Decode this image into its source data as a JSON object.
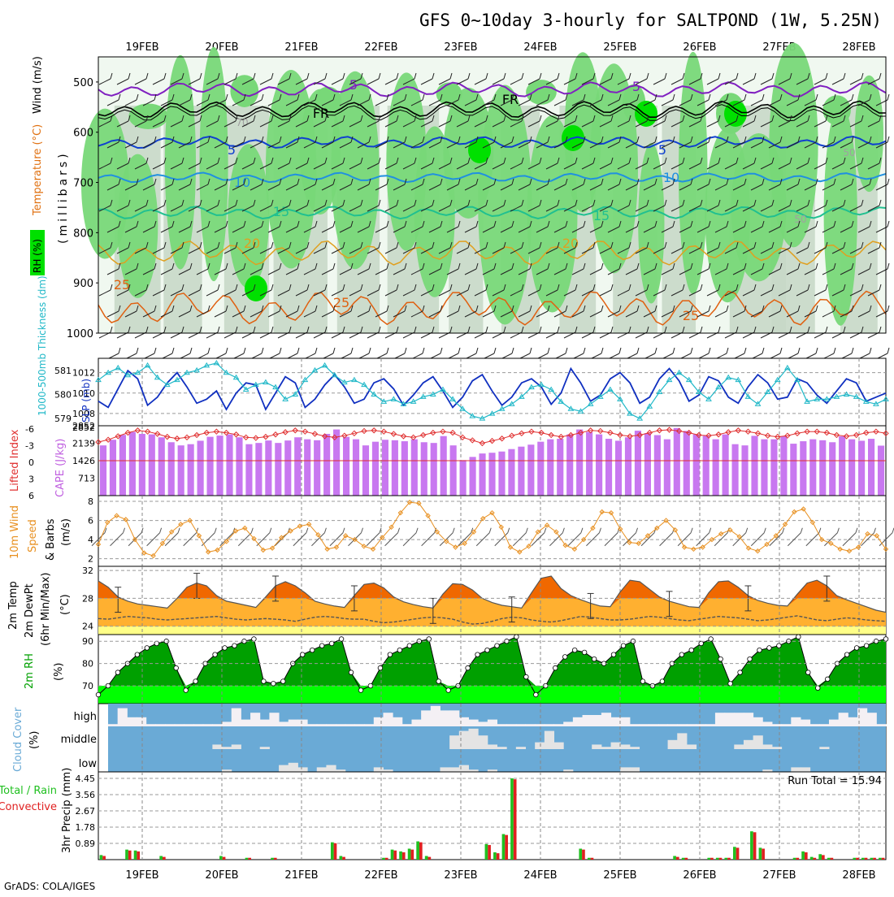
{
  "title": "GFS 0~10day 3-hourly for SALTPOND (1W, 5.25N)",
  "credit": "GrADS: COLA/IGES",
  "colors": {
    "rh_light": "#c8d8c8",
    "rh_mid": "#78d878",
    "rh_dark": "#00e000",
    "cape_bar": "#c878f0",
    "li_line": "#e03030",
    "slp_line": "#1030c0",
    "thick_line": "#20b8c8",
    "wind_line": "#e89020",
    "temp_fill": "#ffb030",
    "temp_top": "#f06800",
    "dew_fill": "#ffff88",
    "rh2m_dark": "#00a000",
    "rh2m_light": "#00ff00",
    "cloud_bg": "#6aaad6",
    "cloud_fill": "#f4f0f4",
    "precip_total": "#20c020",
    "precip_conv": "#e02020"
  },
  "dates": [
    "19FEB",
    "20FEB",
    "21FEB",
    "22FEB",
    "23FEB",
    "24FEB",
    "25FEB",
    "26FEB",
    "27FEB",
    "28FEB"
  ],
  "chart_data": [
    {
      "type": "area",
      "panel": "upper-air",
      "ylabels": [
        "RH (%)",
        "Temperature (°C)",
        "Wind (m/s)",
        "(millibars)"
      ],
      "yticks": [
        500,
        600,
        700,
        800,
        900,
        1000
      ],
      "ylim": [
        450,
        1000
      ],
      "isotherm_labels": [
        {
          "level": "-5",
          "series": "temp_m5",
          "text": [
            "5",
            "5"
          ]
        },
        {
          "level": "0",
          "series": "temp_0",
          "text": [
            "FR",
            "FR"
          ]
        },
        {
          "level": "5",
          "series": "temp_5",
          "text": [
            "5",
            "5"
          ]
        },
        {
          "level": "10",
          "series": "temp_10",
          "text": [
            "10",
            "10"
          ]
        },
        {
          "level": "15",
          "series": "temp_15",
          "text": [
            "15",
            "15"
          ]
        },
        {
          "level": "20",
          "series": "temp_20",
          "text": [
            "20",
            "20"
          ]
        },
        {
          "level": "25",
          "series": "temp_25",
          "text": [
            "25",
            "25",
            "25"
          ]
        }
      ],
      "rh_labels": [
        "70",
        "50",
        "50"
      ]
    },
    {
      "type": "line",
      "panel": "slp-thickness",
      "ylabel_left": "1000-500mb Thickness (dm)",
      "ylabel_right": "SLP (mb)",
      "left_ticks": [
        579,
        580,
        581
      ],
      "right_ticks": [
        1008,
        1010,
        1012
      ],
      "slp": [
        1009.2,
        1008.6,
        1010.4,
        1012.2,
        1011.4,
        1008.8,
        1009.6,
        1011.0,
        1012.0,
        1010.6,
        1009.0,
        1009.4,
        1010.2,
        1008.4,
        1010.0,
        1011.0,
        1010.8,
        1008.4,
        1010.0,
        1011.6,
        1011.0,
        1008.6,
        1009.4,
        1010.8,
        1011.8,
        1010.6,
        1009.0,
        1009.4,
        1011.0,
        1011.4,
        1010.4,
        1008.8,
        1009.8,
        1011.0,
        1011.6,
        1010.2,
        1008.6,
        1009.6,
        1011.2,
        1011.8,
        1010.2,
        1008.8,
        1009.6,
        1011.0,
        1011.4,
        1010.6,
        1008.9,
        1010.0,
        1012.4,
        1011.0,
        1009.2,
        1009.8,
        1011.4,
        1012.0,
        1011.0,
        1009.0,
        1009.6,
        1011.4,
        1012.4,
        1011.2,
        1009.2,
        1009.8,
        1011.6,
        1011.2,
        1009.6,
        1009.0,
        1010.6,
        1011.8,
        1011.0,
        1009.4,
        1009.6,
        1011.4,
        1011.0,
        1009.8,
        1009.0,
        1010.2,
        1011.4,
        1011.0,
        1009.2,
        1009.6,
        1010.0
      ],
      "thickness": [
        580.6,
        580.9,
        581.1,
        580.8,
        580.9,
        581.2,
        580.7,
        580.4,
        580.6,
        580.9,
        581.0,
        581.2,
        581.3,
        580.9,
        580.7,
        580.2,
        580.4,
        580.5,
        580.3,
        579.8,
        580.0,
        580.6,
        581.0,
        581.2,
        580.8,
        580.5,
        580.6,
        580.4,
        580.0,
        579.7,
        579.8,
        579.6,
        579.7,
        579.9,
        580.0,
        580.2,
        579.8,
        579.4,
        579.1,
        579.0,
        579.2,
        579.4,
        579.6,
        579.9,
        580.3,
        580.4,
        580.2,
        579.7,
        579.4,
        579.3,
        579.6,
        579.9,
        580.2,
        579.8,
        579.2,
        579.0,
        579.5,
        580.1,
        580.6,
        580.9,
        580.6,
        580.1,
        579.8,
        580.3,
        580.7,
        580.6,
        579.9,
        579.6,
        580.1,
        580.6,
        581.1,
        580.6,
        579.7,
        579.8,
        579.8,
        579.9,
        580.0,
        579.9,
        579.7,
        579.6,
        579.8
      ]
    },
    {
      "type": "bar",
      "panel": "cape-li",
      "ylabel_left": "Lifted Index",
      "ylabel_right": "CAPE (J/kg)",
      "left_ticks": [
        "-6",
        "-3",
        "0",
        "3",
        "6"
      ],
      "right_ticks": [
        "713",
        "1426",
        "2139",
        "2852"
      ],
      "cape": [
        2050,
        2280,
        2480,
        2600,
        2520,
        2500,
        2380,
        2180,
        2050,
        2100,
        2240,
        2400,
        2450,
        2500,
        2380,
        2100,
        2150,
        2250,
        2150,
        2250,
        2380,
        2300,
        2260,
        2520,
        2700,
        2400,
        2300,
        2050,
        2200,
        2280,
        2260,
        2220,
        2300,
        2180,
        2150,
        2430,
        2050,
        1450,
        1580,
        1720,
        1750,
        1800,
        1900,
        2000,
        2080,
        2200,
        2300,
        2320,
        2500,
        2700,
        2600,
        2500,
        2320,
        2240,
        2380,
        2650,
        2550,
        2470,
        2300,
        2760,
        2640,
        2500,
        2440,
        2300,
        2500,
        2100,
        2050,
        2440,
        2300,
        2300,
        2420,
        2120,
        2220,
        2300,
        2260,
        2180,
        2420,
        2300,
        2240,
        2320,
        2040
      ],
      "li": [
        -3.2,
        -3.6,
        -4.2,
        -4.8,
        -5.2,
        -5.0,
        -4.6,
        -4.1,
        -3.8,
        -4.0,
        -4.4,
        -4.8,
        -5.0,
        -4.8,
        -4.5,
        -4.0,
        -3.9,
        -4.1,
        -4.5,
        -4.9,
        -5.2,
        -5.0,
        -4.6,
        -4.2,
        -4.0,
        -4.3,
        -4.7,
        -5.1,
        -5.2,
        -5.0,
        -4.6,
        -4.2,
        -4.0,
        -4.4,
        -4.8,
        -5.0,
        -4.8,
        -4.0,
        -3.5,
        -3.0,
        -3.4,
        -3.8,
        -4.3,
        -4.7,
        -5.0,
        -4.8,
        -4.4,
        -4.1,
        -4.4,
        -4.8,
        -5.2,
        -5.1,
        -4.8,
        -4.4,
        -4.2,
        -4.4,
        -4.8,
        -5.2,
        -5.3,
        -5.1,
        -4.8,
        -4.4,
        -4.3,
        -4.5,
        -4.9,
        -5.2,
        -5.0,
        -4.7,
        -4.3,
        -4.1,
        -4.3,
        -4.7,
        -5.0,
        -5.0,
        -4.8,
        -4.4,
        -4.2,
        -4.4,
        -4.8,
        -5.0,
        -4.7
      ]
    },
    {
      "type": "line",
      "panel": "wind10m",
      "ylabel": "10m Wind Speed & Barbs (m/s)",
      "yticks": [
        2,
        4,
        6,
        8
      ],
      "values": [
        3.5,
        5.8,
        6.5,
        6.1,
        4.0,
        2.6,
        2.3,
        3.6,
        4.8,
        5.6,
        6.0,
        4.4,
        2.7,
        2.9,
        3.8,
        4.9,
        5.2,
        4.1,
        2.9,
        3.1,
        4.2,
        4.9,
        5.4,
        5.6,
        4.5,
        3.0,
        3.2,
        4.4,
        4.0,
        3.3,
        3.0,
        4.2,
        5.3,
        6.8,
        7.9,
        7.8,
        6.5,
        4.8,
        3.8,
        3.2,
        3.6,
        4.8,
        6.2,
        6.8,
        5.3,
        3.2,
        2.7,
        3.3,
        4.8,
        5.5,
        4.8,
        3.4,
        3.0,
        4.0,
        5.2,
        6.9,
        6.8,
        5.1,
        3.7,
        3.6,
        4.4,
        5.2,
        6.0,
        5.0,
        3.2,
        3.0,
        3.2,
        4.0,
        4.6,
        5.0,
        4.3,
        3.1,
        2.8,
        3.5,
        4.4,
        5.6,
        6.9,
        7.2,
        5.8,
        4.0,
        3.6,
        3.0,
        2.8,
        3.2,
        4.6,
        4.4,
        3.0
      ]
    },
    {
      "type": "area",
      "panel": "temp2m",
      "ylabel": "2m Temp 2m DewPt (6hr Min/Max) (°C)",
      "yticks": [
        24,
        28,
        32
      ],
      "temp": [
        30.5,
        29.6,
        28.2,
        27.6,
        27.2,
        27.0,
        26.8,
        26.6,
        28.0,
        29.6,
        30.2,
        29.8,
        28.4,
        27.6,
        27.3,
        27.0,
        26.7,
        28.2,
        29.8,
        30.4,
        29.8,
        28.8,
        27.6,
        27.2,
        26.9,
        26.7,
        28.4,
        30.0,
        30.2,
        29.5,
        28.2,
        27.5,
        27.1,
        26.8,
        26.6,
        28.6,
        30.1,
        30.0,
        29.2,
        28.0,
        27.4,
        27.0,
        26.8,
        26.6,
        28.8,
        30.9,
        31.2,
        29.4,
        28.4,
        27.8,
        27.3,
        26.9,
        26.8,
        28.9,
        30.6,
        30.4,
        29.3,
        28.2,
        27.6,
        27.2,
        26.8,
        26.7,
        28.8,
        30.4,
        30.5,
        29.6,
        28.4,
        27.7,
        27.3,
        27.0,
        26.9,
        28.6,
        30.2,
        30.6,
        29.8,
        28.4,
        27.8,
        27.3,
        26.8,
        26.3,
        26.0
      ],
      "dewpt": [
        25.1,
        25.0,
        25.2,
        25.4,
        25.3,
        25.2,
        25.0,
        24.9,
        25.0,
        25.1,
        25.2,
        25.3,
        25.4,
        25.2,
        25.0,
        24.9,
        25.0,
        25.1,
        25.0,
        24.9,
        24.7,
        25.0,
        25.3,
        25.4,
        25.3,
        25.1,
        25.0,
        25.0,
        24.7,
        24.5,
        24.6,
        24.8,
        25.0,
        25.2,
        25.3,
        25.2,
        25.0,
        24.6,
        24.3,
        24.4,
        24.7,
        25.1,
        25.3,
        25.2,
        24.9,
        24.7,
        24.6,
        24.8,
        25.1,
        25.4,
        25.3,
        25.1,
        24.9,
        24.9,
        25.0,
        25.2,
        25.4,
        25.3,
        25.1,
        24.9,
        24.8,
        25.0,
        25.2,
        25.4,
        25.3,
        25.2,
        25.0,
        24.8,
        24.9,
        25.1,
        25.3,
        25.5,
        25.2,
        24.9,
        24.8,
        25.0,
        25.2,
        25.1,
        24.9,
        24.8,
        24.7
      ]
    },
    {
      "type": "area",
      "panel": "rh2m",
      "ylabel": "2m RH (%)",
      "yticks": [
        70,
        80,
        90
      ],
      "values": [
        66,
        70,
        76,
        80,
        84,
        87,
        89,
        90,
        78,
        68,
        72,
        80,
        84,
        87,
        88,
        90,
        91,
        72,
        71,
        72,
        80,
        84,
        86,
        88,
        89,
        91,
        76,
        68,
        70,
        78,
        84,
        86,
        88,
        90,
        91,
        72,
        68,
        70,
        78,
        84,
        86,
        88,
        90,
        92,
        74,
        66,
        70,
        78,
        83,
        86,
        85,
        82,
        80,
        84,
        88,
        90,
        72,
        70,
        72,
        80,
        84,
        86,
        89,
        91,
        82,
        71,
        76,
        82,
        86,
        87,
        88,
        90,
        92,
        76,
        69,
        73,
        80,
        84,
        87,
        88,
        90,
        91
      ]
    },
    {
      "type": "bar",
      "panel": "cloud",
      "ylabel": "Cloud Cover (%)",
      "rows": [
        "high",
        "middle",
        "low"
      ],
      "high": [
        10,
        80,
        40,
        40,
        10,
        10,
        10,
        10,
        10,
        10,
        10,
        10,
        20,
        80,
        30,
        60,
        30,
        60,
        20,
        30,
        30,
        10,
        10,
        10,
        10,
        10,
        10,
        10,
        40,
        60,
        40,
        10,
        30,
        70,
        90,
        70,
        70,
        40,
        30,
        20,
        30,
        10,
        10,
        10,
        10,
        10,
        10,
        10,
        20,
        40,
        50,
        50,
        60,
        40,
        40,
        10,
        10,
        10,
        10,
        10,
        10,
        10,
        10,
        10,
        60,
        60,
        60,
        60,
        40,
        20,
        10,
        10,
        40,
        30,
        10,
        10,
        30,
        60,
        40,
        80,
        60,
        10
      ],
      "middle": [
        0,
        0,
        0,
        0,
        0,
        0,
        0,
        0,
        0,
        0,
        0,
        20,
        10,
        20,
        0,
        0,
        10,
        0,
        0,
        0,
        0,
        0,
        0,
        0,
        0,
        0,
        0,
        0,
        0,
        0,
        0,
        0,
        0,
        0,
        0,
        0,
        60,
        80,
        90,
        60,
        20,
        10,
        0,
        10,
        0,
        30,
        80,
        30,
        0,
        0,
        0,
        20,
        10,
        30,
        20,
        10,
        0,
        0,
        0,
        40,
        70,
        20,
        0,
        0,
        0,
        0,
        20,
        40,
        60,
        20,
        10,
        0,
        0,
        0,
        0,
        10,
        0,
        0,
        0,
        0,
        0
      ],
      "low": [
        0,
        0,
        0,
        0,
        0,
        0,
        0,
        0,
        0,
        0,
        0,
        0,
        10,
        0,
        0,
        0,
        0,
        0,
        30,
        40,
        20,
        0,
        20,
        30,
        10,
        0,
        0,
        0,
        20,
        10,
        0,
        0,
        0,
        0,
        0,
        20,
        20,
        30,
        10,
        0,
        10,
        0,
        0,
        0,
        0,
        0,
        0,
        0,
        10,
        0,
        0,
        0,
        0,
        0,
        20,
        20,
        0,
        0,
        0,
        0,
        0,
        0,
        0,
        0,
        0,
        0,
        0,
        0,
        0,
        10,
        0,
        0,
        20,
        20,
        0,
        0,
        0,
        0,
        0,
        0,
        0
      ]
    },
    {
      "type": "bar",
      "panel": "precip",
      "ylabel": "3hr Precip (mm)",
      "left_labels": [
        "Total / Rain",
        "Convective"
      ],
      "yticks": [
        "0.89",
        "1.78",
        "2.67",
        "3.56",
        "4.45"
      ],
      "run_total": "Run Total = 15.94",
      "total": [
        0.25,
        0,
        0,
        0.55,
        0.5,
        0,
        0,
        0.2,
        0,
        0,
        0,
        0,
        0,
        0,
        0.2,
        0,
        0,
        0.1,
        0,
        0,
        0.1,
        0,
        0,
        0,
        0,
        0,
        0,
        0.95,
        0.2,
        0,
        0,
        0,
        0,
        0.1,
        0.55,
        0.45,
        0.6,
        1.0,
        0.2,
        0,
        0,
        0,
        0,
        0,
        0,
        0.85,
        0.4,
        1.4,
        4.45,
        0,
        0,
        0,
        0,
        0,
        0,
        0,
        0.6,
        0.1,
        0,
        0,
        0,
        0,
        0,
        0,
        0,
        0,
        0,
        0.2,
        0.1,
        0,
        0,
        0.1,
        0.1,
        0.1,
        0.7,
        0,
        1.55,
        0.65,
        0,
        0,
        0,
        0.1,
        0.45,
        0.15,
        0.3,
        0.1,
        0,
        0,
        0.1,
        0.1,
        0.1,
        0.1
      ],
      "convective": [
        0.2,
        0,
        0,
        0.5,
        0.45,
        0,
        0,
        0.15,
        0,
        0,
        0,
        0,
        0,
        0,
        0.15,
        0,
        0,
        0.1,
        0,
        0,
        0.1,
        0,
        0,
        0,
        0,
        0,
        0,
        0.9,
        0.15,
        0,
        0,
        0,
        0,
        0.1,
        0.5,
        0.4,
        0.55,
        0.95,
        0.15,
        0,
        0,
        0,
        0,
        0,
        0,
        0.8,
        0.35,
        1.35,
        4.4,
        0,
        0,
        0,
        0,
        0,
        0,
        0,
        0.55,
        0.1,
        0,
        0,
        0,
        0,
        0,
        0,
        0,
        0,
        0,
        0.15,
        0.1,
        0,
        0,
        0.1,
        0.1,
        0.1,
        0.65,
        0,
        1.5,
        0.6,
        0,
        0,
        0,
        0.1,
        0.4,
        0.1,
        0.25,
        0.1,
        0,
        0,
        0.1,
        0.1,
        0.1,
        0.1
      ]
    }
  ]
}
